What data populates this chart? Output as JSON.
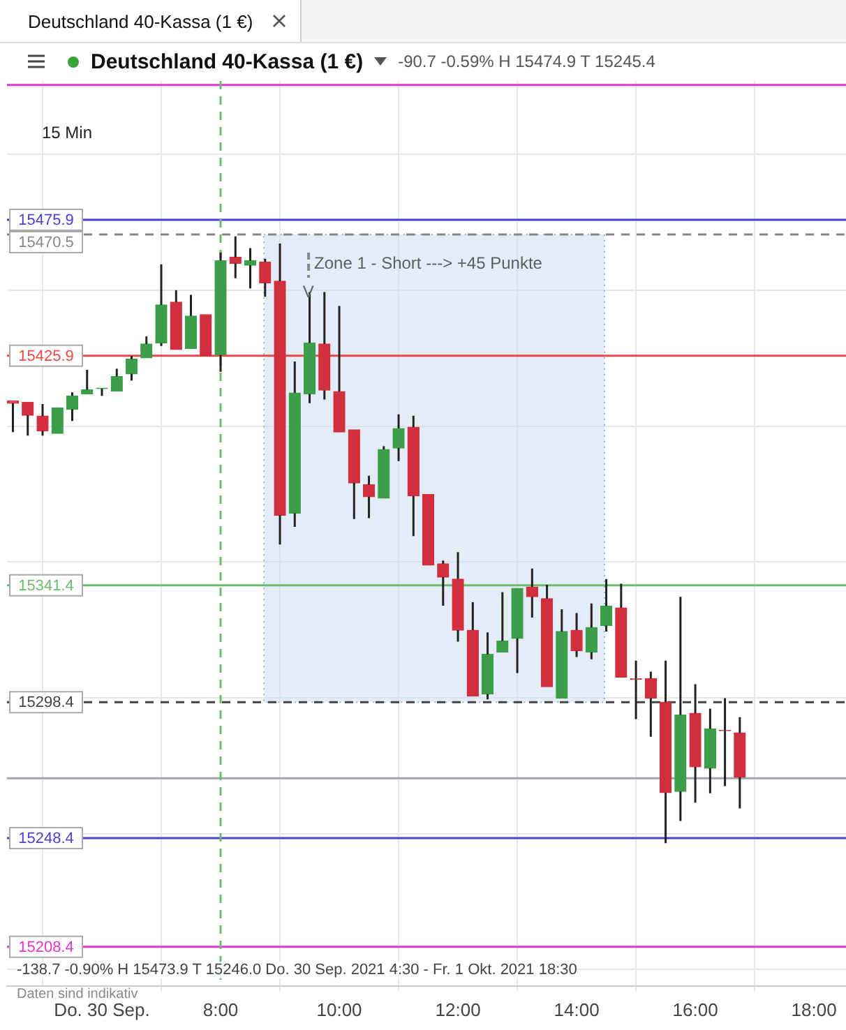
{
  "chart_data": {
    "type": "candlestick",
    "title": "Deutschland 40-Kassa (1 €)",
    "subtitle": "-90.7 -0.59% H 15474.9 T 15245.4",
    "x": [
      4.5,
      4.75,
      5,
      5.25,
      5.5,
      5.75,
      6,
      6.25,
      6.5,
      6.75,
      7,
      7.25,
      7.5,
      7.75,
      8,
      8.25,
      8.5,
      8.75,
      9,
      9.25,
      9.5,
      9.75,
      10,
      10.25,
      10.5,
      10.75,
      11,
      11.25,
      11.5,
      11.75,
      12,
      12.25,
      12.5,
      12.75,
      13,
      13.25,
      13.5,
      13.75,
      14,
      14.25,
      14.5,
      14.75,
      15,
      15.25,
      15.5,
      15.75,
      16,
      16.25,
      16.5,
      16.75
    ],
    "ohlc": [
      [
        15409.3,
        15410.1,
        15397.8,
        15408.4
      ],
      [
        15408.8,
        15409.6,
        15396.5,
        15404.0
      ],
      [
        15403.7,
        15408.1,
        15396.5,
        15398.2
      ],
      [
        15397.3,
        15407.4,
        15397.3,
        15406.7
      ],
      [
        15406.2,
        15412.4,
        15401.9,
        15411.1
      ],
      [
        15411.8,
        15420.7,
        15411.8,
        15413.4
      ],
      [
        15413.8,
        15414.7,
        15411.1,
        15414.0
      ],
      [
        15412.9,
        15421.1,
        15412.9,
        15418.3
      ],
      [
        15419.2,
        15425.8,
        15416.8,
        15424.6
      ],
      [
        15425.1,
        15433.0,
        15425.1,
        15430.2
      ],
      [
        15430.6,
        15459.5,
        15429.5,
        15444.6
      ],
      [
        15445.6,
        15450.0,
        15427.5,
        15428.2
      ],
      [
        15428.5,
        15448.3,
        15428.5,
        15440.5
      ],
      [
        15441.0,
        15441.0,
        15425.1,
        15425.8
      ],
      [
        15426.2,
        15463.8,
        15420.0,
        15460.9
      ],
      [
        15462.1,
        15469.8,
        15454.4,
        15459.9
      ],
      [
        15459.2,
        15465.5,
        15450.7,
        15460.9
      ],
      [
        15460.4,
        15461.6,
        15447.6,
        15452.7
      ],
      [
        15453.3,
        15467.2,
        15356.4,
        15367.2
      ],
      [
        15367.9,
        15423.8,
        15362.9,
        15412.2
      ],
      [
        15411.8,
        15449.3,
        15408.4,
        15430.6
      ],
      [
        15430.2,
        15449.3,
        15409.8,
        15413.2
      ],
      [
        15412.7,
        15444.2,
        15397.0,
        15397.8
      ],
      [
        15398.6,
        15398.6,
        15365.8,
        15379.1
      ],
      [
        15378.4,
        15381.7,
        15366.1,
        15374.0
      ],
      [
        15373.5,
        15392.6,
        15373.5,
        15391.4
      ],
      [
        15391.9,
        15404.3,
        15387.1,
        15399.1
      ],
      [
        15399.6,
        15403.8,
        15359.5,
        15374.3
      ],
      [
        15374.8,
        15374.8,
        15348.5,
        15348.8
      ],
      [
        15349.3,
        15350.5,
        15333.9,
        15344.4
      ],
      [
        15343.7,
        15353.6,
        15320.7,
        15324.9
      ],
      [
        15324.9,
        15335.2,
        15300.0,
        15300.7
      ],
      [
        15301.4,
        15324.1,
        15299.4,
        15316.0
      ],
      [
        15316.8,
        15338.9,
        15316.8,
        15320.9
      ],
      [
        15321.9,
        15340.3,
        15309.1,
        15340.3
      ],
      [
        15340.8,
        15347.6,
        15329.5,
        15337.2
      ],
      [
        15336.5,
        15341.6,
        15304.1,
        15304.1
      ],
      [
        15299.9,
        15332.6,
        15299.9,
        15324.4
      ],
      [
        15324.9,
        15331.2,
        15315.0,
        15317.3
      ],
      [
        15316.8,
        15334.7,
        15314.2,
        15325.9
      ],
      [
        15326.6,
        15343.7,
        15324.4,
        15333.8
      ],
      [
        15333.1,
        15342.0,
        15307.6,
        15307.6
      ],
      [
        15307.0,
        15313.7,
        15292.2,
        15306.8
      ],
      [
        15307.1,
        15309.6,
        15285.7,
        15299.9
      ],
      [
        15298.4,
        15313.7,
        15246.5,
        15265.1
      ],
      [
        15265.6,
        15337.2,
        15254.7,
        15293.7
      ],
      [
        15294.3,
        15305.0,
        15261.4,
        15274.6
      ],
      [
        15274.1,
        15296.0,
        15264.9,
        15288.6
      ],
      [
        15288.0,
        15299.9,
        15267.5,
        15287.9
      ],
      [
        15287.1,
        15292.9,
        15259.3,
        15270.8
      ]
    ],
    "colors": [
      "#d12f3d",
      "#d12f3d",
      "#d12f3d",
      "#3d9e4a",
      "#3d9e4a",
      "#3d9e4a",
      "#3d9e4a",
      "#3d9e4a",
      "#3d9e4a",
      "#3d9e4a",
      "#3d9e4a",
      "#d12f3d",
      "#3d9e4a",
      "#d12f3d",
      "#3d9e4a",
      "#d12f3d",
      "#3d9e4a",
      "#d12f3d",
      "#d12f3d",
      "#3d9e4a",
      "#3d9e4a",
      "#d12f3d",
      "#d12f3d",
      "#d12f3d",
      "#d12f3d",
      "#3d9e4a",
      "#3d9e4a",
      "#d12f3d",
      "#d12f3d",
      "#d12f3d",
      "#d12f3d",
      "#d12f3d",
      "#3d9e4a",
      "#3d9e4a",
      "#3d9e4a",
      "#d12f3d",
      "#d12f3d",
      "#3d9e4a",
      "#d12f3d",
      "#3d9e4a",
      "#3d9e4a",
      "#d12f3d",
      "#d12f3d",
      "#d12f3d",
      "#d12f3d",
      "#3d9e4a",
      "#d12f3d",
      "#3d9e4a",
      "#d12f3d",
      "#d12f3d"
    ],
    "xlim": [
      4.4,
      18.54
    ],
    "xticks": [
      {
        "value": 6,
        "label": "Do. 30 Sep."
      },
      {
        "value": 8,
        "label": "8:00"
      },
      {
        "value": 10,
        "label": "10:00"
      },
      {
        "value": 12,
        "label": "12:00"
      },
      {
        "value": 14,
        "label": "14:00"
      },
      {
        "value": 16,
        "label": "16:00"
      },
      {
        "value": 18,
        "label": "18:00"
      }
    ],
    "ylim": [
      15194,
      15527
    ],
    "yticks": [
      {
        "value": 15200,
        "label": null
      },
      {
        "value": 15250,
        "label": null
      },
      {
        "value": 15300,
        "label": null
      },
      {
        "value": 15350,
        "label": null
      },
      {
        "value": 15400,
        "label": null
      },
      {
        "value": 15450,
        "label": null
      },
      {
        "value": 15500,
        "label": null
      }
    ],
    "tick_labels": "x",
    "grid": true,
    "ref_lines": [
      {
        "axis": "y",
        "value": 15525.5,
        "label": null,
        "color": "#e535c9"
      },
      {
        "axis": "y",
        "value": 15475.9,
        "label": "15475.9",
        "color": "#4b3fd6"
      },
      {
        "axis": "y",
        "value": 15470.5,
        "label": "15470.5",
        "color": "#888888",
        "line_style": "dashed"
      },
      {
        "axis": "y",
        "value": 15425.9,
        "label": "15425.9",
        "color": "#f04848"
      },
      {
        "axis": "y",
        "value": 15341.4,
        "label": "15341.4",
        "color": "#6dbb70"
      },
      {
        "axis": "y",
        "value": 15298.4,
        "label": "15298.4",
        "color": "#444444",
        "line_style": "dashed"
      },
      {
        "axis": "y",
        "value": 15270.4,
        "label": null,
        "color": "#a0a4ae"
      },
      {
        "axis": "y",
        "value": 15248.4,
        "label": "15248.4",
        "color": "#4b3fd6"
      },
      {
        "axis": "y",
        "value": 15208.4,
        "label": "15208.4",
        "color": "#e535c9"
      },
      {
        "axis": "x",
        "value": 8,
        "label": null,
        "color": "#6dbb70",
        "line_style": "dashed"
      }
    ],
    "bands": [
      {
        "axis": "x",
        "from": 8.73,
        "to": 14.47,
        "label": "Zone 1 - Short ---> +45 Punkte",
        "color": "#c9dcf0"
      }
    ],
    "annotations": [
      "15 Min",
      {
        "text": "V",
        "x": 9.48,
        "y": 15449
      },
      "-138.7 -0.90% H 15473.9 T 15246.0 Do. 30 Sep. 2021 4:30 - Fr. 1 Okt. 2021 18:30",
      "Daten sind indikativ"
    ]
  }
}
